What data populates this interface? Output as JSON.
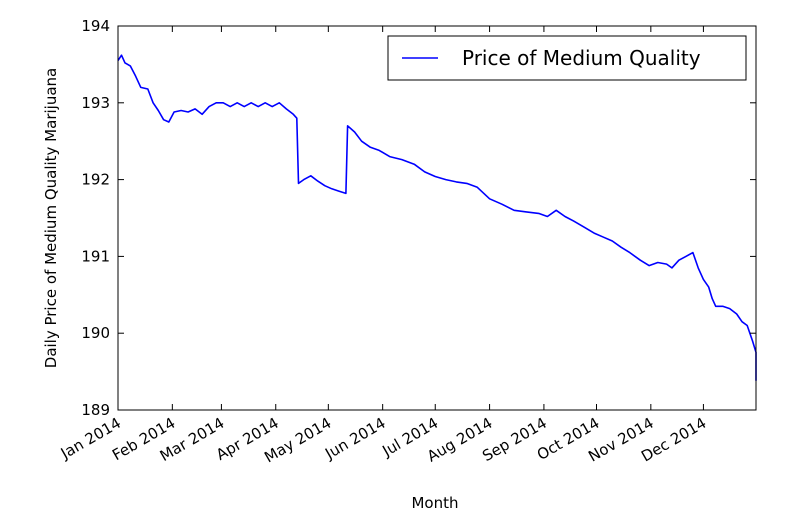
{
  "chart_data": {
    "type": "line",
    "title": "",
    "xlabel": "Month",
    "ylabel": "Daily Price of Medium Quality Marijuana",
    "ylim": [
      189,
      194
    ],
    "xlim": [
      "2014-01-01",
      "2014-12-31"
    ],
    "yticks": [
      189,
      190,
      191,
      192,
      193,
      194
    ],
    "xticks": [
      {
        "date": "2014-01-01",
        "label": "Jan 2014"
      },
      {
        "date": "2014-02-01",
        "label": "Feb 2014"
      },
      {
        "date": "2014-03-01",
        "label": "Mar 2014"
      },
      {
        "date": "2014-04-01",
        "label": "Apr 2014"
      },
      {
        "date": "2014-05-01",
        "label": "May 2014"
      },
      {
        "date": "2014-06-01",
        "label": "Jun 2014"
      },
      {
        "date": "2014-07-01",
        "label": "Jul 2014"
      },
      {
        "date": "2014-08-01",
        "label": "Aug 2014"
      },
      {
        "date": "2014-09-01",
        "label": "Sep 2014"
      },
      {
        "date": "2014-10-01",
        "label": "Oct 2014"
      },
      {
        "date": "2014-11-01",
        "label": "Nov 2014"
      },
      {
        "date": "2014-12-01",
        "label": "Dec 2014"
      }
    ],
    "grid": false,
    "legend_position": "top-right",
    "series": [
      {
        "name": "Price of Medium Quality",
        "color": "#0000ff",
        "points": [
          [
            "2014-01-01",
            193.55
          ],
          [
            "2014-01-03",
            193.62
          ],
          [
            "2014-01-05",
            193.52
          ],
          [
            "2014-01-08",
            193.48
          ],
          [
            "2014-01-11",
            193.35
          ],
          [
            "2014-01-14",
            193.2
          ],
          [
            "2014-01-18",
            193.18
          ],
          [
            "2014-01-21",
            193.0
          ],
          [
            "2014-01-24",
            192.9
          ],
          [
            "2014-01-27",
            192.78
          ],
          [
            "2014-01-30",
            192.75
          ],
          [
            "2014-02-02",
            192.88
          ],
          [
            "2014-02-06",
            192.9
          ],
          [
            "2014-02-10",
            192.88
          ],
          [
            "2014-02-14",
            192.92
          ],
          [
            "2014-02-18",
            192.85
          ],
          [
            "2014-02-22",
            192.95
          ],
          [
            "2014-02-26",
            193.0
          ],
          [
            "2014-03-02",
            193.0
          ],
          [
            "2014-03-06",
            192.95
          ],
          [
            "2014-03-10",
            193.0
          ],
          [
            "2014-03-14",
            192.95
          ],
          [
            "2014-03-18",
            193.0
          ],
          [
            "2014-03-22",
            192.95
          ],
          [
            "2014-03-26",
            193.0
          ],
          [
            "2014-03-30",
            192.95
          ],
          [
            "2014-04-03",
            193.0
          ],
          [
            "2014-04-07",
            192.92
          ],
          [
            "2014-04-11",
            192.85
          ],
          [
            "2014-04-13",
            192.8
          ],
          [
            "2014-04-14",
            191.95
          ],
          [
            "2014-04-17",
            192.0
          ],
          [
            "2014-04-21",
            192.05
          ],
          [
            "2014-04-25",
            191.98
          ],
          [
            "2014-04-29",
            191.92
          ],
          [
            "2014-05-03",
            191.88
          ],
          [
            "2014-05-07",
            191.85
          ],
          [
            "2014-05-11",
            191.82
          ],
          [
            "2014-05-12",
            192.7
          ],
          [
            "2014-05-16",
            192.62
          ],
          [
            "2014-05-20",
            192.5
          ],
          [
            "2014-05-25",
            192.42
          ],
          [
            "2014-05-30",
            192.38
          ],
          [
            "2014-06-05",
            192.3
          ],
          [
            "2014-06-12",
            192.26
          ],
          [
            "2014-06-19",
            192.2
          ],
          [
            "2014-06-25",
            192.1
          ],
          [
            "2014-07-01",
            192.04
          ],
          [
            "2014-07-07",
            192.0
          ],
          [
            "2014-07-13",
            191.97
          ],
          [
            "2014-07-19",
            191.95
          ],
          [
            "2014-07-25",
            191.9
          ],
          [
            "2014-08-01",
            191.75
          ],
          [
            "2014-08-08",
            191.68
          ],
          [
            "2014-08-15",
            191.6
          ],
          [
            "2014-08-22",
            191.58
          ],
          [
            "2014-08-29",
            191.56
          ],
          [
            "2014-09-03",
            191.52
          ],
          [
            "2014-09-08",
            191.6
          ],
          [
            "2014-09-13",
            191.52
          ],
          [
            "2014-09-18",
            191.46
          ],
          [
            "2014-09-24",
            191.38
          ],
          [
            "2014-09-30",
            191.3
          ],
          [
            "2014-10-05",
            191.25
          ],
          [
            "2014-10-10",
            191.2
          ],
          [
            "2014-10-15",
            191.12
          ],
          [
            "2014-10-20",
            191.05
          ],
          [
            "2014-10-26",
            190.95
          ],
          [
            "2014-10-31",
            190.88
          ],
          [
            "2014-11-05",
            190.92
          ],
          [
            "2014-11-10",
            190.9
          ],
          [
            "2014-11-13",
            190.85
          ],
          [
            "2014-11-17",
            190.95
          ],
          [
            "2014-11-21",
            191.0
          ],
          [
            "2014-11-25",
            191.05
          ],
          [
            "2014-11-28",
            190.85
          ],
          [
            "2014-12-01",
            190.7
          ],
          [
            "2014-12-04",
            190.6
          ],
          [
            "2014-12-06",
            190.45
          ],
          [
            "2014-12-08",
            190.35
          ],
          [
            "2014-12-12",
            190.35
          ],
          [
            "2014-12-16",
            190.32
          ],
          [
            "2014-12-20",
            190.25
          ],
          [
            "2014-12-23",
            190.15
          ],
          [
            "2014-12-26",
            190.1
          ],
          [
            "2014-12-29",
            189.9
          ],
          [
            "2015-01-01",
            189.75
          ],
          [
            "2015-01-04",
            189.62
          ],
          [
            "2015-01-07",
            189.5
          ],
          [
            "2015-01-09",
            189.38
          ]
        ]
      }
    ]
  }
}
